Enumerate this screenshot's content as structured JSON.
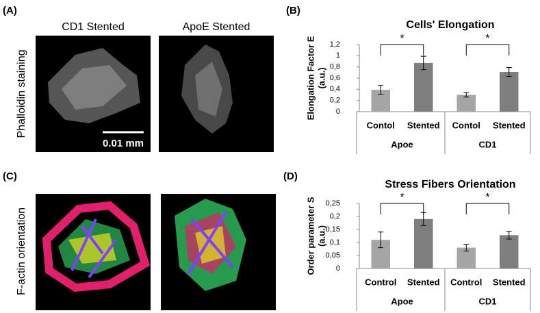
{
  "figure": {
    "panel_labels": [
      "(A)",
      "(B)",
      "(C)",
      "(D)"
    ],
    "column_titles": [
      "CD1 Stented",
      "ApoE Stented"
    ],
    "row_labels": [
      "Phalloidin staining",
      "F-actin orientation"
    ],
    "scale_bar": "0.01 mm"
  },
  "chart_data": [
    {
      "type": "bar",
      "title": "Cells' Elongation",
      "y_label": [
        "Elongation Factor E",
        "(a.u.)"
      ],
      "categories": [
        "Contol",
        "Stented",
        "Contol",
        "Stented"
      ],
      "groups": [
        "Apoe",
        "CD1"
      ],
      "values": [
        0.39,
        0.87,
        0.3,
        0.71
      ],
      "errors": [
        0.08,
        0.12,
        0.04,
        0.08
      ],
      "colors": [
        "#a6a6a6",
        "#7f7f7f",
        "#a6a6a6",
        "#7f7f7f"
      ],
      "significance": [
        "*",
        "*"
      ],
      "ylim": [
        0,
        1.2
      ],
      "yticks": [
        0,
        {
          "value": 0.2,
          "label": "0,2"
        },
        {
          "value": 0.4,
          "label": "0,4"
        },
        {
          "value": 0.6,
          "label": "0,6"
        },
        {
          "value": 0.8,
          "label": "0,8"
        },
        1,
        {
          "value": 1.2,
          "label": "1,2"
        }
      ]
    },
    {
      "type": "bar",
      "title": "Stress Fibers Orientation",
      "y_label": [
        "Order parameter S",
        "(a.u.)"
      ],
      "categories": [
        "Control",
        "Stented",
        "Control",
        "Stented"
      ],
      "groups": [
        "Apoe",
        "CD1"
      ],
      "values": [
        0.11,
        0.19,
        0.08,
        0.128
      ],
      "errors": [
        0.03,
        0.025,
        0.013,
        0.015
      ],
      "colors": [
        "#a6a6a6",
        "#7f7f7f",
        "#a6a6a6",
        "#7f7f7f"
      ],
      "significance": [
        "*",
        "*"
      ],
      "ylim": [
        0,
        0.25
      ],
      "yticks": [
        0,
        {
          "value": 0.05,
          "label": "0,05"
        },
        {
          "value": 0.1,
          "label": "0,1"
        },
        {
          "value": 0.15,
          "label": "0,15"
        },
        {
          "value": 0.2,
          "label": "0,2"
        },
        {
          "value": 0.25,
          "label": "0,25"
        }
      ]
    }
  ]
}
